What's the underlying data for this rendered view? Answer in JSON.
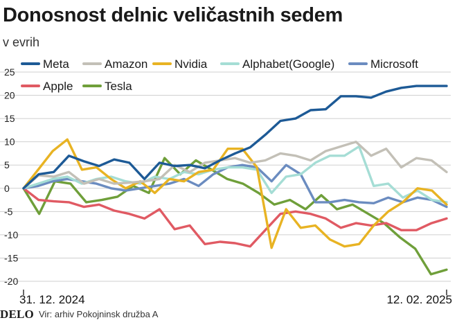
{
  "header": {
    "title": "Donosnost delnic veličastnih sedem",
    "subtitle": "v evrih"
  },
  "footer": {
    "brand": "DELO",
    "source": "Vir: arhiv Pokojninsk družba A"
  },
  "chart_data": {
    "type": "line",
    "title": "Donosnost delnic veličastnih sedem",
    "subtitle": "v evrih",
    "xlabel": "",
    "ylabel": "",
    "x_tick_labels": [
      "31. 12. 2024",
      "12. 02. 2025"
    ],
    "ylim": [
      -22,
      27
    ],
    "y_ticks": [
      25,
      20,
      15,
      10,
      5,
      0,
      -5,
      -10,
      -15,
      -20
    ],
    "y_tick_labels": [
      "25",
      "20",
      "15",
      "10",
      "5",
      "0",
      "-5",
      "-10",
      "-15",
      "-20"
    ],
    "grid": true,
    "legend_position": "top",
    "series": [
      {
        "name": "Meta",
        "color": "#1d5a96",
        "values": [
          0,
          3,
          3.5,
          7,
          5.8,
          4.8,
          6.2,
          5.5,
          2,
          5.5,
          4.8,
          5,
          4.3,
          6,
          7.5,
          8.8,
          11.5,
          14.5,
          15,
          16.8,
          17,
          19.8,
          19.8,
          19.5,
          20.8,
          21.6,
          22,
          22,
          22
        ]
      },
      {
        "name": "Amazon",
        "color": "#c3c0b7",
        "values": [
          0,
          2.8,
          2.5,
          3.5,
          1,
          2,
          1,
          1.2,
          1.5,
          2,
          5,
          3.5,
          5.5,
          6,
          6.5,
          5.5,
          6,
          7.5,
          7,
          6,
          8,
          9,
          10,
          7,
          8.5,
          4.5,
          6.5,
          6,
          3.5
        ]
      },
      {
        "name": "Nvidia",
        "color": "#e8b323",
        "values": [
          0,
          4,
          8,
          10.5,
          4,
          4.5,
          2,
          0,
          1.5,
          -1,
          2,
          1.5,
          3.5,
          4,
          8.5,
          8.5,
          4.5,
          -12.8,
          -4.5,
          -8.5,
          -8,
          -11,
          -12.5,
          -12,
          -8,
          -5,
          -3,
          0,
          -0.5,
          -3.5
        ]
      },
      {
        "name": "Alphabet(Google)",
        "color": "#a5ddd5",
        "values": [
          0,
          1,
          2,
          2.5,
          1,
          2,
          2.5,
          1.5,
          1,
          2.5,
          2,
          3.5,
          3,
          4,
          4.5,
          4.5,
          4,
          -1,
          2.5,
          3,
          5.5,
          7,
          7,
          9,
          0.5,
          1,
          -2,
          -0.5,
          -2.5,
          -3
        ]
      },
      {
        "name": "Microsoft",
        "color": "#6b8cc0",
        "values": [
          0,
          0.5,
          1.5,
          2,
          1.5,
          1,
          0,
          -0.5,
          0,
          0.5,
          1,
          2,
          0.5,
          3,
          4.5,
          5,
          4.5,
          1.5,
          5,
          3,
          -3,
          -3,
          -2.5,
          -3,
          -3.2,
          -2,
          -3,
          -2,
          -2.5,
          -4
        ]
      },
      {
        "name": "Apple",
        "color": "#e05a63",
        "values": [
          0,
          -2.5,
          -2.8,
          -3,
          -4,
          -3.5,
          -4.8,
          -5.5,
          -6.5,
          -4.5,
          -8.8,
          -8,
          -12,
          -11.5,
          -11.8,
          -12.5,
          -9,
          -5.5,
          -5,
          -5.5,
          -6.5,
          -8.5,
          -7.5,
          -8,
          -7.5,
          -9,
          -9,
          -7.5,
          -6.5
        ]
      },
      {
        "name": "Tesla",
        "color": "#6f9f3a",
        "values": [
          0,
          -5.5,
          1.5,
          1,
          -3,
          -2.5,
          -1.8,
          0.5,
          -1,
          6.5,
          3,
          6,
          4,
          2,
          1,
          -1,
          -3.5,
          -2.5,
          -4.5,
          -1.5,
          -4.5,
          -3.5,
          -5.5,
          -7.5,
          -10.5,
          -13,
          -18.5,
          -17.5
        ]
      }
    ]
  }
}
